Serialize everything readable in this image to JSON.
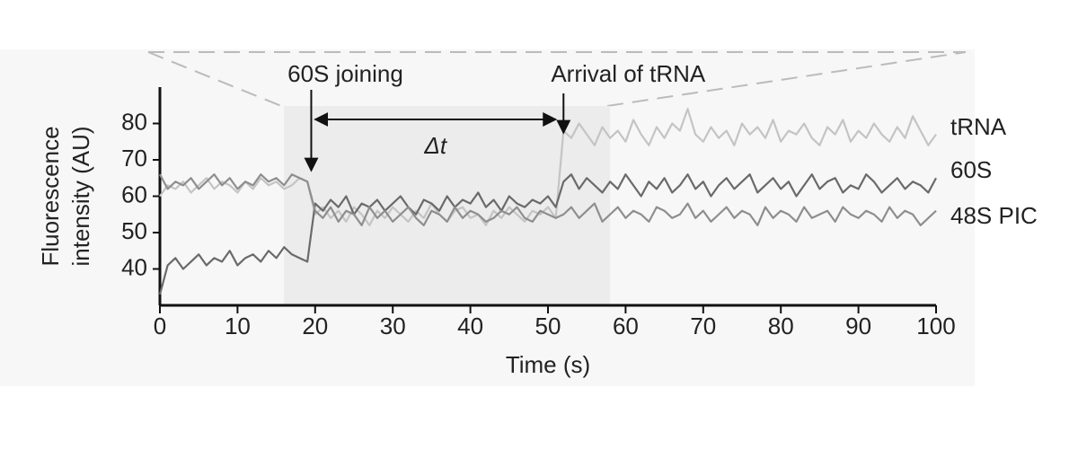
{
  "chart_data": {
    "type": "line",
    "ylabel": [
      "Fluorescence",
      "intensity (AU)"
    ],
    "xlabel": "Time (s)",
    "xlim": [
      0,
      100
    ],
    "xticks": [
      0,
      10,
      20,
      30,
      40,
      50,
      60,
      70,
      80,
      90,
      100
    ],
    "ylim": [
      30,
      90
    ],
    "yticks": [
      40,
      50,
      60,
      70,
      80
    ],
    "shaded_region": [
      16,
      58
    ],
    "annotations": [
      {
        "text": "60S joining",
        "x": 19.5
      },
      {
        "text": "Arrival of tRNA",
        "x": 52
      },
      {
        "text": "Δt",
        "x_range": [
          20,
          51
        ]
      }
    ],
    "x": [
      0,
      1,
      2,
      3,
      4,
      5,
      6,
      7,
      8,
      9,
      10,
      11,
      12,
      13,
      14,
      15,
      16,
      17,
      18,
      19,
      20,
      21,
      22,
      23,
      24,
      25,
      26,
      27,
      28,
      29,
      30,
      31,
      32,
      33,
      34,
      35,
      36,
      37,
      38,
      39,
      40,
      41,
      42,
      43,
      44,
      45,
      46,
      47,
      48,
      49,
      50,
      51,
      52,
      53,
      54,
      55,
      56,
      57,
      58,
      59,
      60,
      61,
      62,
      63,
      64,
      65,
      66,
      67,
      68,
      69,
      70,
      71,
      72,
      73,
      74,
      75,
      76,
      77,
      78,
      79,
      80,
      81,
      82,
      83,
      84,
      85,
      86,
      87,
      88,
      89,
      90,
      91,
      92,
      93,
      94,
      95,
      96,
      97,
      98,
      99,
      100
    ],
    "series": [
      {
        "name": "tRNA",
        "color": "#c4c4c4",
        "values": [
          60,
          63,
          62,
          64,
          61,
          63,
          65,
          62,
          64,
          63,
          61,
          64,
          62,
          65,
          63,
          64,
          62,
          63,
          65,
          64,
          55,
          57,
          54,
          56,
          53,
          57,
          55,
          52,
          56,
          54,
          57,
          55,
          53,
          56,
          54,
          58,
          55,
          53,
          56,
          57,
          54,
          55,
          52,
          56,
          54,
          57,
          55,
          53,
          56,
          55,
          57,
          54,
          78,
          76,
          80,
          77,
          74,
          79,
          76,
          78,
          75,
          81,
          77,
          74,
          79,
          76,
          80,
          78,
          84,
          77,
          75,
          79,
          76,
          78,
          74,
          80,
          77,
          79,
          76,
          81,
          75,
          78,
          77,
          80,
          76,
          74,
          79,
          77,
          81,
          75,
          78,
          76,
          80,
          77,
          75,
          79,
          76,
          82,
          78,
          74,
          77
        ]
      },
      {
        "name": "60S",
        "color": "#6a6a6a",
        "values": [
          33,
          41,
          43,
          40,
          42,
          44,
          41,
          43,
          42,
          45,
          41,
          43,
          44,
          42,
          45,
          43,
          46,
          44,
          43,
          42,
          58,
          56,
          59,
          57,
          60,
          55,
          58,
          57,
          59,
          56,
          58,
          60,
          57,
          55,
          59,
          58,
          56,
          60,
          57,
          59,
          58,
          61,
          57,
          59,
          56,
          60,
          58,
          57,
          59,
          58,
          60,
          57,
          64,
          66,
          62,
          65,
          63,
          61,
          64,
          62,
          66,
          63,
          60,
          64,
          62,
          65,
          61,
          63,
          66,
          62,
          64,
          60,
          63,
          65,
          62,
          64,
          66,
          61,
          63,
          65,
          62,
          64,
          60,
          63,
          66,
          62,
          64,
          65,
          61,
          63,
          62,
          66,
          64,
          61,
          63,
          65,
          62,
          64,
          63,
          61,
          65
        ]
      },
      {
        "name": "48S PIC",
        "color": "#8e8e8e",
        "values": [
          66,
          62,
          64,
          63,
          65,
          62,
          64,
          66,
          63,
          65,
          62,
          64,
          63,
          66,
          64,
          65,
          63,
          66,
          65,
          64,
          56,
          54,
          57,
          53,
          56,
          55,
          52,
          57,
          54,
          56,
          53,
          55,
          57,
          54,
          52,
          56,
          55,
          53,
          57,
          54,
          56,
          55,
          53,
          54,
          56,
          55,
          57,
          54,
          53,
          56,
          55,
          54,
          55,
          57,
          54,
          56,
          58,
          53,
          55,
          57,
          54,
          56,
          55,
          53,
          57,
          56,
          54,
          55,
          58,
          54,
          56,
          53,
          55,
          57,
          54,
          56,
          55,
          52,
          57,
          54,
          56,
          55,
          53,
          57,
          54,
          55,
          56,
          53,
          57,
          55,
          54,
          56,
          55,
          53,
          57,
          54,
          56,
          55,
          52,
          54,
          56
        ]
      }
    ]
  }
}
